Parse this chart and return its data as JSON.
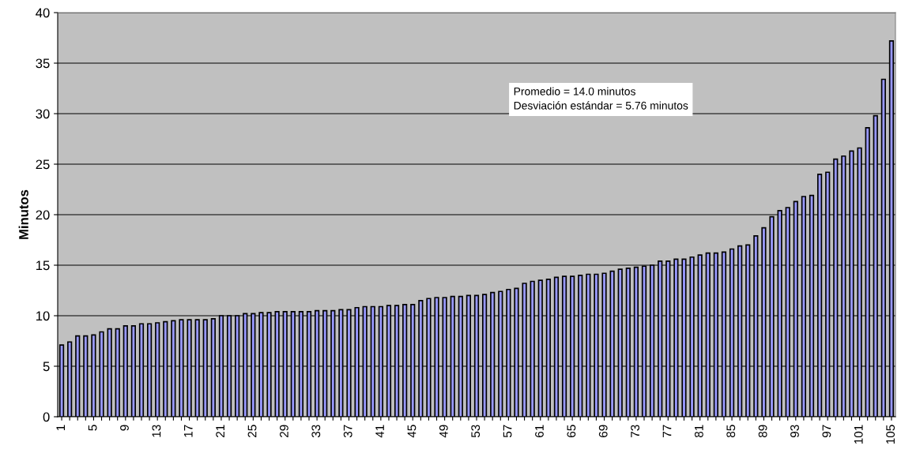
{
  "chart_data": {
    "type": "bar",
    "ylabel": "Minutos",
    "categories": [
      "1",
      null,
      null,
      null,
      "5",
      null,
      null,
      null,
      "9",
      null,
      null,
      null,
      "13",
      null,
      null,
      null,
      "17",
      null,
      null,
      null,
      "21",
      null,
      null,
      null,
      "25",
      null,
      null,
      null,
      "29",
      null,
      null,
      null,
      "33",
      null,
      null,
      null,
      "37",
      null,
      null,
      null,
      "41",
      null,
      null,
      null,
      "45",
      null,
      null,
      null,
      "49",
      null,
      null,
      null,
      "53",
      null,
      null,
      null,
      "57",
      null,
      null,
      null,
      "61",
      null,
      null,
      null,
      "65",
      null,
      null,
      null,
      "69",
      null,
      null,
      null,
      "73",
      null,
      null,
      null,
      "77",
      null,
      null,
      null,
      "81",
      null,
      null,
      null,
      "85",
      null,
      null,
      null,
      "89",
      null,
      null,
      null,
      "93",
      null,
      null,
      null,
      "97",
      null,
      null,
      null,
      "101",
      null,
      null,
      null,
      "105"
    ],
    "values": [
      7.1,
      7.4,
      8.0,
      8.0,
      8.1,
      8.4,
      8.7,
      8.7,
      9.0,
      9.0,
      9.2,
      9.2,
      9.3,
      9.4,
      9.5,
      9.6,
      9.6,
      9.6,
      9.6,
      9.7,
      10.0,
      10.0,
      10.0,
      10.2,
      10.2,
      10.3,
      10.3,
      10.4,
      10.4,
      10.4,
      10.4,
      10.4,
      10.5,
      10.5,
      10.5,
      10.6,
      10.6,
      10.8,
      10.9,
      10.9,
      10.9,
      11.0,
      11.0,
      11.1,
      11.1,
      11.5,
      11.7,
      11.8,
      11.8,
      11.9,
      11.9,
      12.0,
      12.0,
      12.1,
      12.3,
      12.4,
      12.6,
      12.7,
      13.2,
      13.4,
      13.5,
      13.6,
      13.8,
      13.9,
      13.9,
      14.0,
      14.1,
      14.1,
      14.2,
      14.4,
      14.6,
      14.7,
      14.8,
      14.9,
      15.0,
      15.4,
      15.4,
      15.6,
      15.6,
      15.8,
      16.0,
      16.2,
      16.2,
      16.3,
      16.6,
      16.9,
      17.0,
      17.9,
      18.7,
      19.8,
      20.4,
      20.7,
      21.3,
      21.8,
      21.9,
      24.0,
      24.2,
      25.5,
      25.8,
      26.3,
      26.6,
      28.6,
      29.8,
      33.4,
      37.2
    ],
    "color": "#9999ff",
    "ylim": [
      0,
      40
    ],
    "yticks": [
      0,
      5,
      10,
      15,
      20,
      25,
      30,
      35,
      40
    ],
    "grid": "y",
    "annotations": [
      "Promedio = 14.0 minutos",
      "Desviación estándar = 5.76 minutos"
    ]
  }
}
